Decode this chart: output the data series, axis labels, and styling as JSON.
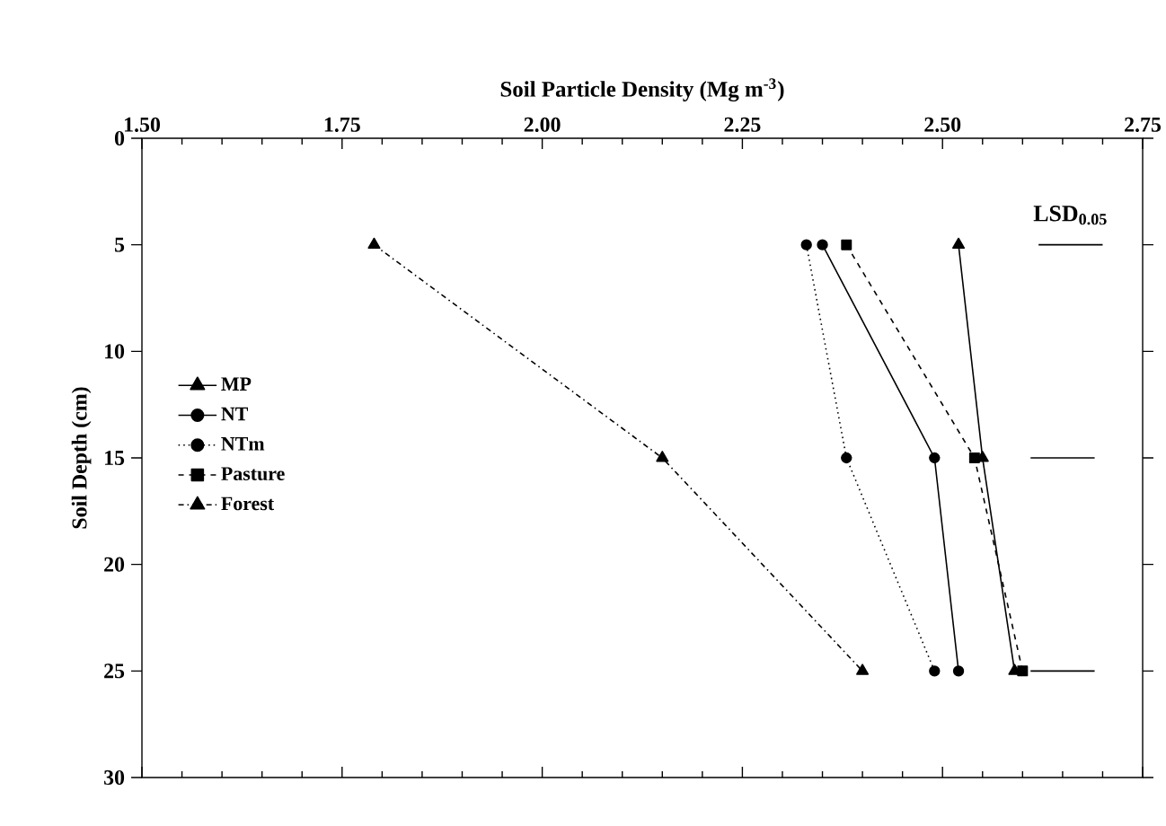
{
  "chart_data": {
    "type": "line",
    "xlabel": "Soil Particle Density (Mg m$^{-3}$)",
    "ylabel": "Soil Depth (cm)",
    "xlim": [
      1.5,
      2.75
    ],
    "xticks": [
      {
        "value": 1.5,
        "label": "1.50"
      },
      {
        "value": 1.55,
        "label": null
      },
      {
        "value": 1.6,
        "label": null
      },
      {
        "value": 1.65,
        "label": null
      },
      {
        "value": 1.7,
        "label": null
      },
      {
        "value": 1.75,
        "label": "1.75"
      },
      {
        "value": 1.8,
        "label": null
      },
      {
        "value": 1.85,
        "label": null
      },
      {
        "value": 1.9,
        "label": null
      },
      {
        "value": 1.95,
        "label": null
      },
      {
        "value": 2.0,
        "label": "2.00"
      },
      {
        "value": 2.05,
        "label": null
      },
      {
        "value": 2.1,
        "label": null
      },
      {
        "value": 2.15,
        "label": null
      },
      {
        "value": 2.2,
        "label": null
      },
      {
        "value": 2.25,
        "label": "2.25"
      },
      {
        "value": 2.3,
        "label": null
      },
      {
        "value": 2.35,
        "label": null
      },
      {
        "value": 2.4,
        "label": null
      },
      {
        "value": 2.45,
        "label": null
      },
      {
        "value": 2.5,
        "label": "2.50"
      },
      {
        "value": 2.55,
        "label": null
      },
      {
        "value": 2.6,
        "label": null
      },
      {
        "value": 2.65,
        "label": null
      },
      {
        "value": 2.7,
        "label": null
      },
      {
        "value": 2.75,
        "label": "2.75"
      }
    ],
    "ylim": [
      30,
      0
    ],
    "yticks": [
      0,
      5,
      10,
      15,
      20,
      25,
      30
    ],
    "legend": "left",
    "grid": false,
    "series": [
      {
        "name": "MP",
        "color": "#000000",
        "marker": "triangle",
        "line_style": "solid",
        "x": [
          2.52,
          2.55,
          2.59
        ],
        "values": [
          5,
          15,
          25
        ]
      },
      {
        "name": "NT",
        "color": "#000000",
        "marker": "circle",
        "line_style": "solid",
        "x": [
          2.35,
          2.49,
          2.52
        ],
        "values": [
          5,
          15,
          25
        ]
      },
      {
        "name": "NTm",
        "color": "#000000",
        "marker": "circle",
        "line_style": "dotted",
        "x": [
          2.33,
          2.38,
          2.49
        ],
        "values": [
          5,
          15,
          25
        ]
      },
      {
        "name": "Pasture",
        "color": "#000000",
        "marker": "square",
        "line_style": "dashed",
        "x": [
          2.38,
          2.54,
          2.6
        ],
        "values": [
          5,
          15,
          25
        ]
      },
      {
        "name": "Forest",
        "color": "#000000",
        "marker": "triangle",
        "line_style": "dashdot",
        "x": [
          1.79,
          2.15,
          2.4
        ],
        "values": [
          5,
          15,
          25
        ]
      },
      {
        "color": "#000000",
        "marker": "none",
        "line_style": "solid",
        "x": [
          2.62,
          2.7
        ],
        "values": [
          5,
          5
        ]
      },
      {
        "color": "#000000",
        "marker": "none",
        "line_style": "solid",
        "x": [
          2.61,
          2.69
        ],
        "values": [
          15,
          15
        ]
      },
      {
        "color": "#000000",
        "marker": "none",
        "line_style": "solid",
        "x": [
          2.61,
          2.69
        ],
        "values": [
          25,
          25
        ]
      }
    ],
    "annotations": [
      "LSD$_{0.05}$"
    ]
  }
}
